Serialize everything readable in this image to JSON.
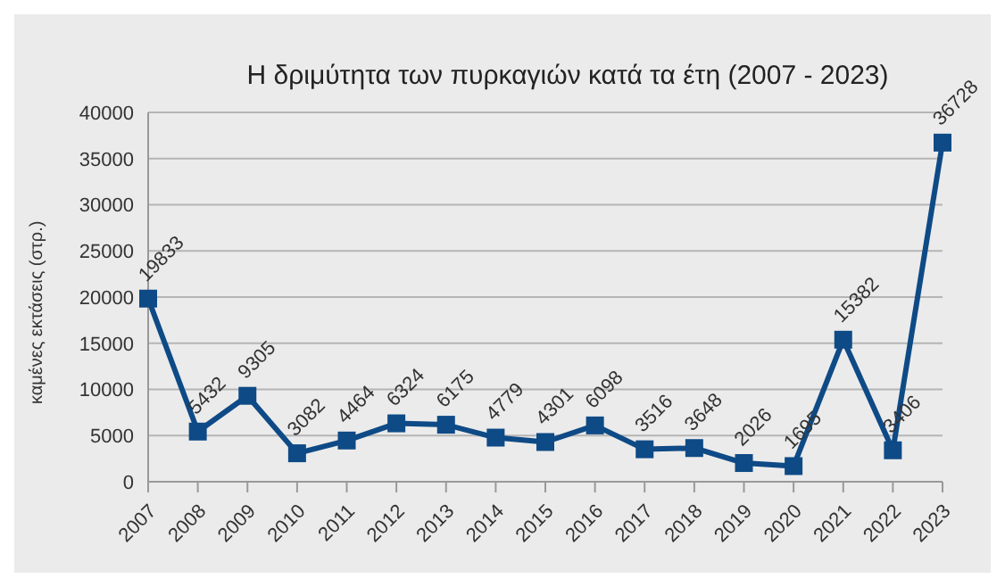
{
  "chart_data": {
    "type": "line",
    "title": "Η δριμύτητα των πυρκαγιών κατά τα έτη (2007 - 2023)",
    "ylabel": "καμένες εκτάσεις (στρ.)",
    "categories": [
      "2007",
      "2008",
      "2009",
      "2010",
      "2011",
      "2012",
      "2013",
      "2014",
      "2015",
      "2016",
      "2017",
      "2018",
      "2019",
      "2020",
      "2021",
      "2022",
      "2023"
    ],
    "series": [
      {
        "color": "#0e4a86",
        "values": [
          19833,
          5432,
          9305,
          3082,
          4464,
          6324,
          6175,
          4779,
          4301,
          6098,
          3516,
          3648,
          2026,
          1695,
          15382,
          3406,
          36728
        ]
      }
    ],
    "ylim": [
      0,
      40000
    ],
    "yticks": [
      0,
      5000,
      10000,
      15000,
      20000,
      25000,
      30000,
      35000,
      40000
    ],
    "grid": "y",
    "legend": false,
    "marker": "square",
    "line_style": "solid",
    "data_labels": true
  }
}
